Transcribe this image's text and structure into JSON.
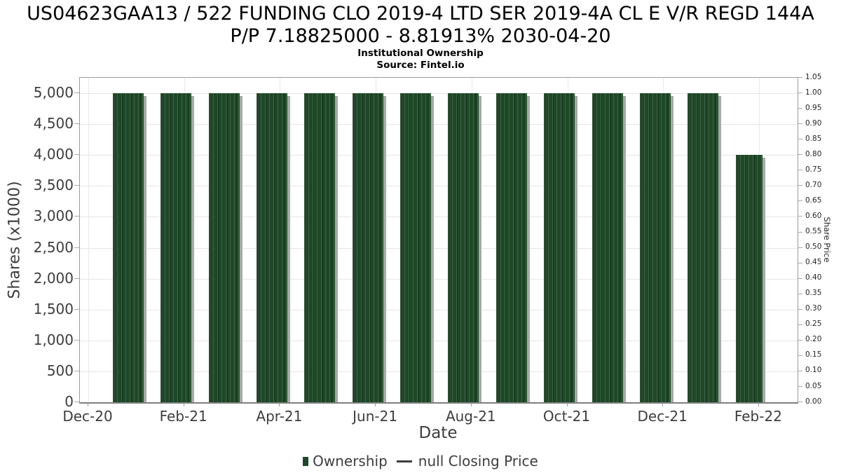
{
  "header": {
    "title_line1": "US04623GAA13 / 522 FUNDING CLO 2019-4 LTD SER 2019-4A CL E V/R REGD 144A",
    "title_line2": "P/P 7.18825000 - 8.81913% 2030-04-20",
    "subtitle": "Institutional Ownership",
    "source": "Source: Fintel.io"
  },
  "chart_data": {
    "type": "bar",
    "title": "US04623GAA13 / 522 FUNDING CLO 2019-4 LTD SER 2019-4A CL E V/R REGD 144A P/P 7.18825000 - 8.81913% 2030-04-20",
    "subtitle": "Institutional Ownership",
    "source": "Source: Fintel.io",
    "xlabel": "Date",
    "ylabel_left": "Shares (x1000)",
    "ylabel_right": "Share Price",
    "grid": true,
    "legend_position": "bottom",
    "ylim_left": [
      0,
      5250
    ],
    "ylim_right": [
      0,
      1.05
    ],
    "categories": [
      "Jan-21",
      "Feb-21",
      "Mar-21",
      "Apr-21",
      "May-21",
      "Jun-21",
      "Jul-21",
      "Aug-21",
      "Sep-21",
      "Oct-21",
      "Nov-21",
      "Dec-21",
      "Jan-22",
      "Feb-22"
    ],
    "series": [
      {
        "name": "Ownership",
        "type": "bar",
        "color": "#1e4827",
        "values": [
          5000,
          5000,
          5000,
          5000,
          5000,
          5000,
          5000,
          5000,
          5000,
          5000,
          5000,
          5000,
          5000,
          4000
        ]
      },
      {
        "name": "null Closing Price",
        "type": "line",
        "color": "#3d3d3d",
        "values": []
      }
    ],
    "x_tick_labels": [
      "Dec-20",
      "Feb-21",
      "Apr-21",
      "Jun-21",
      "Aug-21",
      "Oct-21",
      "Dec-21",
      "Feb-22"
    ],
    "left_ticks": [
      {
        "value": 0,
        "label": "0"
      },
      {
        "value": 500,
        "label": "500"
      },
      {
        "value": 1000,
        "label": "1,000"
      },
      {
        "value": 1500,
        "label": "1,500"
      },
      {
        "value": 2000,
        "label": "2,000"
      },
      {
        "value": 2500,
        "label": "2,500"
      },
      {
        "value": 3000,
        "label": "3,000"
      },
      {
        "value": 3500,
        "label": "3,500"
      },
      {
        "value": 4000,
        "label": "4,000"
      },
      {
        "value": 4500,
        "label": "4,500"
      },
      {
        "value": 5000,
        "label": "5,000"
      }
    ],
    "right_ticks": [
      "0.00",
      "0.05",
      "0.10",
      "0.15",
      "0.20",
      "0.25",
      "0.30",
      "0.35",
      "0.40",
      "0.45",
      "0.50",
      "0.55",
      "0.60",
      "0.65",
      "0.70",
      "0.75",
      "0.80",
      "0.85",
      "0.90",
      "0.95",
      "1.00",
      "1.05"
    ],
    "colors": {
      "bar": "#1e4827",
      "bar_shadow": "#a8a8a8",
      "gridline": "#e6e6e6",
      "spine": "#9a9a9a",
      "tick_text": "#3d3d3d"
    }
  },
  "legend": {
    "ownership_label": "Ownership",
    "price_label": "null Closing Price"
  }
}
